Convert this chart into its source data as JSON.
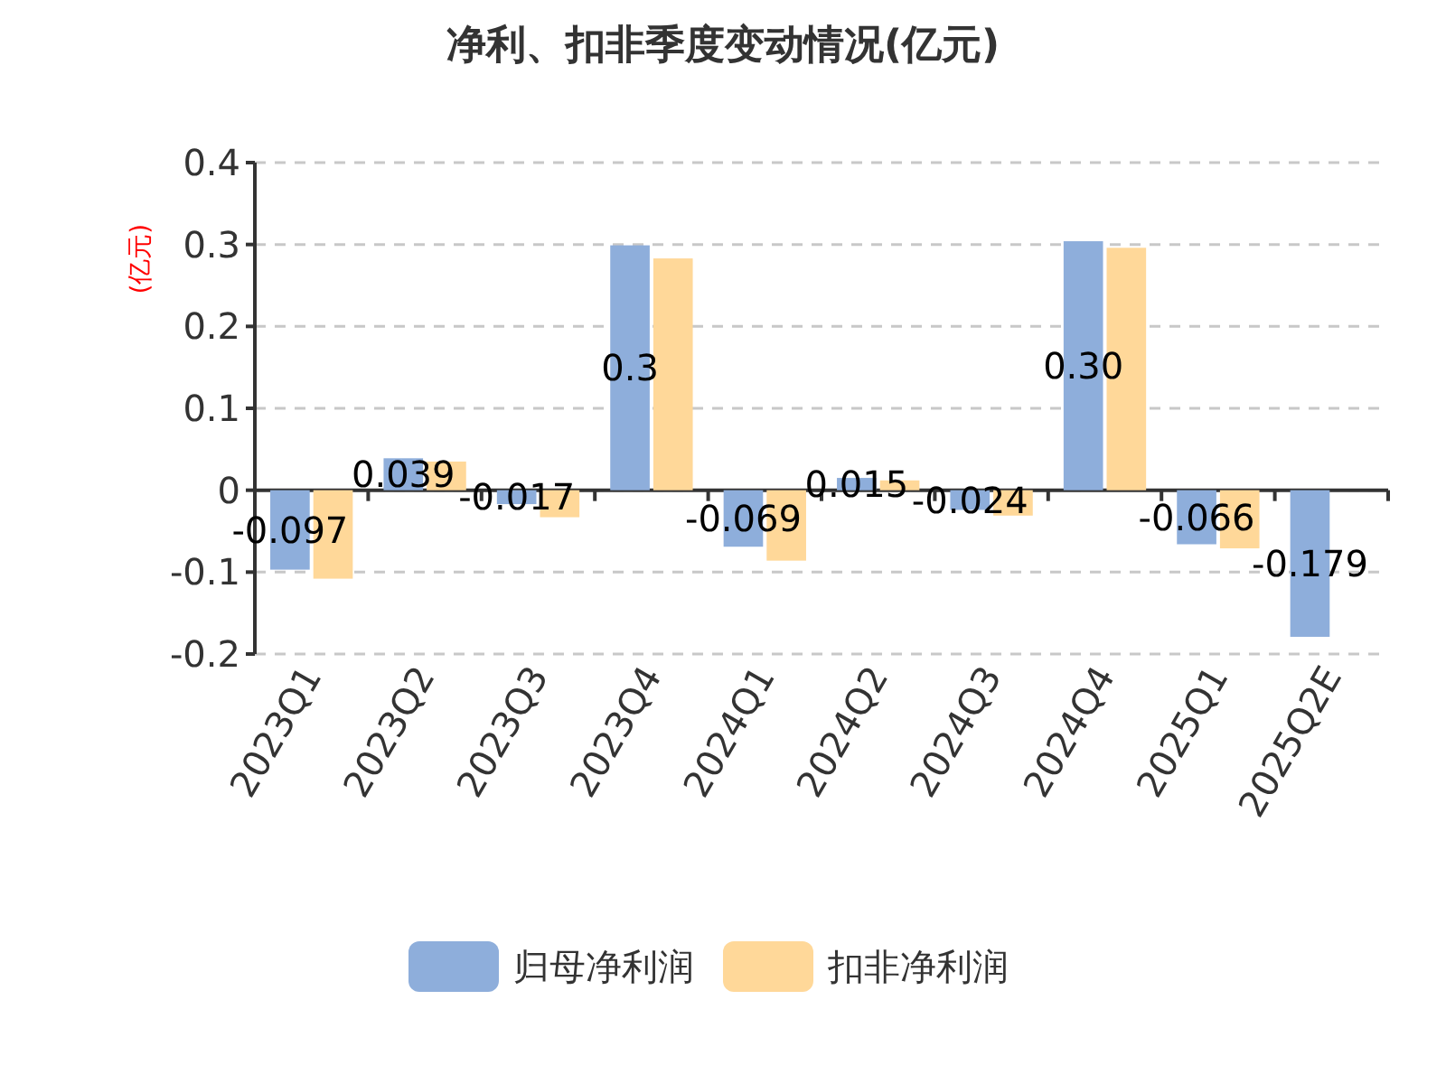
{
  "chart_data": {
    "type": "bar",
    "title": "净利、扣非季度变动情况(亿元)",
    "ylabel": "(亿元)",
    "categories": [
      "2023Q1",
      "2023Q2",
      "2023Q3",
      "2023Q4",
      "2024Q1",
      "2024Q2",
      "2024Q3",
      "2024Q4",
      "2025Q1",
      "2025Q2E"
    ],
    "series": [
      {
        "name": "归母净利润",
        "color": "#8eaedb",
        "values": [
          -0.097,
          0.039,
          -0.017,
          0.299,
          -0.069,
          0.015,
          -0.024,
          0.304,
          -0.066,
          -0.179
        ],
        "value_labels": [
          "-0.097",
          "0.039",
          "-0.017",
          "0.3",
          "-0.069",
          "0.015",
          "-0.024",
          "0.30",
          "-0.066",
          "-0.179"
        ]
      },
      {
        "name": "扣非净利润",
        "color": "#ffd899",
        "values": [
          -0.108,
          0.035,
          -0.033,
          0.283,
          -0.086,
          0.012,
          -0.031,
          0.296,
          -0.071,
          null
        ]
      }
    ],
    "ylim": [
      -0.2,
      0.4
    ],
    "yticks": [
      -0.2,
      -0.1,
      0,
      0.1,
      0.2,
      0.3,
      0.4
    ],
    "grid": "y",
    "legend": "bottom"
  }
}
